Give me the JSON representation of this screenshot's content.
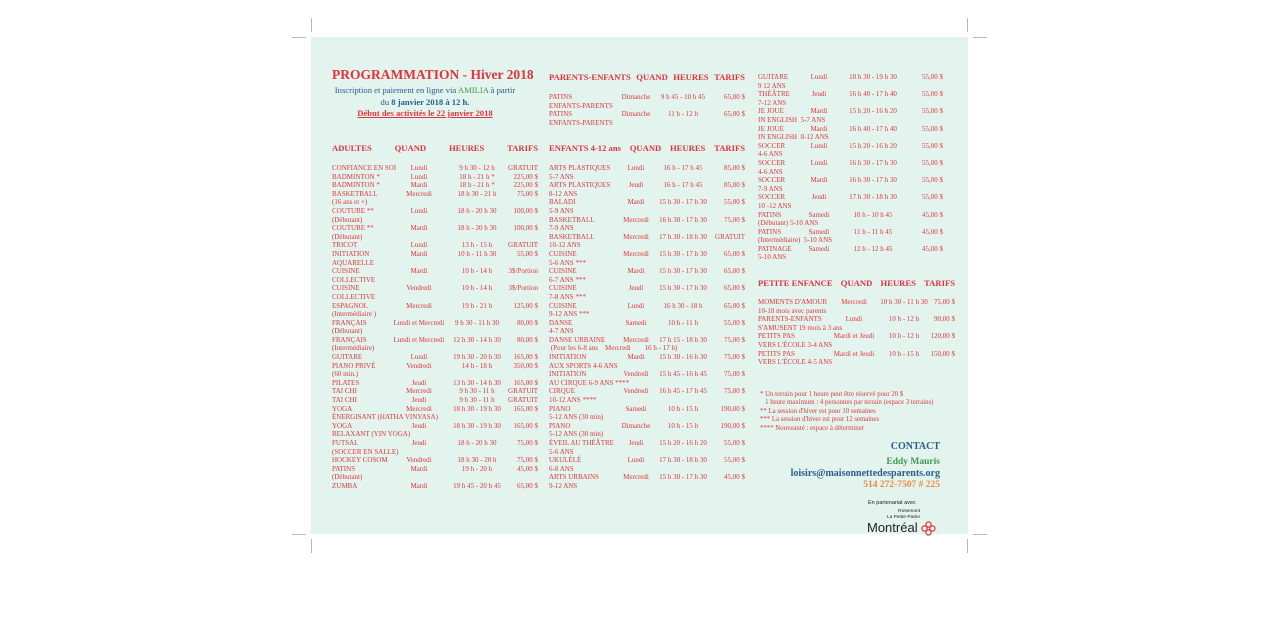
{
  "header": {
    "title": "PROGRAMMATION - Hiver 2018",
    "info_line1_a": "Inscription et paiement en ligne via ",
    "info_line1_b": "AMILIA",
    "info_line1_c": " à partir",
    "info_line2_a": "du ",
    "info_line2_b": "8 janvier 2018 à 12 h.",
    "start_line": "Début des activités le 22 janvier 2018"
  },
  "colors": {
    "red": "#e0343c",
    "blue": "#2a5d8a",
    "green": "#3d9b4e",
    "orange": "#ef8a3c",
    "background": "#e3f3ee"
  },
  "sections": {
    "adultes": {
      "headers": [
        "ADULTES",
        "QUAND",
        "HEURES",
        "TARIFS"
      ],
      "rows": [
        {
          "name": "CONFIANCE EN SOI",
          "sub": "",
          "day": "Lundi",
          "hours": "9 h 30 - 12 h",
          "price": "GRATUIT"
        },
        {
          "name": "BADMINTON *",
          "sub": "",
          "day": "Lundi",
          "hours": "18 h - 21 h *",
          "price": "225,00 $"
        },
        {
          "name": "BADMINTON *",
          "sub": "",
          "day": "Mardi",
          "hours": "18 h - 21 h *",
          "price": "225,00 $"
        },
        {
          "name": "BASKETBALL",
          "sub": "(16 ans et +)",
          "day": "Mercredi",
          "hours": "18 h 30 - 21 h",
          "price": "75,00 $"
        },
        {
          "name": "COUTURE **",
          "sub": "(Débutant)",
          "day": "Lundi",
          "hours": "18 h - 20 h 30",
          "price": "100,00 $"
        },
        {
          "name": "COUTURE **",
          "sub": "(Débutant)",
          "day": "Mardi",
          "hours": "18 h - 20 h 30",
          "price": "100,00 $"
        },
        {
          "name": "TRICOT",
          "sub": "",
          "day": "Lundi",
          "hours": "13 h - 15 h",
          "price": "GRATUIT"
        },
        {
          "name": "INITIATION",
          "sub": "AQUARELLE",
          "day": "Mardi",
          "hours": "10 h - 11 h 30",
          "price": "55,00 $"
        },
        {
          "name": "CUISINE",
          "sub": "COLLECTIVE",
          "day": "Mardi",
          "hours": "10 h - 14 h",
          "price": "3$/Portion"
        },
        {
          "name": "CUISINE",
          "sub": "COLLECTIVE",
          "day": "Vendredi",
          "hours": "10 h - 14 h",
          "price": "3$/Portion"
        },
        {
          "name": "ESPAGNOL",
          "sub": "(Intermédiaire )",
          "day": "Mercredi",
          "hours": "19 h - 21 h",
          "price": "125,00 $"
        },
        {
          "name": "FRANÇAIS",
          "sub": "(Débutant)",
          "day": "Lundi et Mercredi",
          "hours": "9 h 30 - 11 h 30",
          "price": "80,00 $"
        },
        {
          "name": "FRANÇAIS",
          "sub": "(Intermédiaire)",
          "day": "Lundi et Mercredi",
          "hours": "12 h 30 - 14 h 30",
          "price": "80,00 $"
        },
        {
          "name": "GUITARE",
          "sub": "",
          "day": "Lundi",
          "hours": "19 h 30 - 20 h 30",
          "price": "165,00 $"
        },
        {
          "name": "PIANO PRIVÉ",
          "sub": "(60 min.)",
          "day": "Vendredi",
          "hours": "14 h - 18 h",
          "price": "350,00 $"
        },
        {
          "name": "PILATES",
          "sub": "",
          "day": "Jeudi",
          "hours": "13 h 30 - 14 h 30",
          "price": "165,00 $"
        },
        {
          "name": "TAI CHI",
          "sub": "",
          "day": "Mercredi",
          "hours": "9 h 30 - 11 h",
          "price": "GRATUIT"
        },
        {
          "name": "TAI CHI",
          "sub": "",
          "day": "Jeudi",
          "hours": "9 h 30 - 11 h",
          "price": "GRATUIT"
        },
        {
          "name": "YOGA",
          "sub": "ÉNERGISANT (HATHA VINYASA)",
          "day": "Mercredi",
          "hours": "18 h 30 - 19 h 30",
          "price": "165,00 $"
        },
        {
          "name": "YOGA",
          "sub": "RELAXANT (YIN YOGA)",
          "day": "Jeudi",
          "hours": "18 h 30 - 19 h 30",
          "price": "165,00 $"
        },
        {
          "name": "FUTSAL",
          "sub": "(SOCCER EN SALLE)",
          "day": "Jeudi",
          "hours": "18 h - 20 h 30",
          "price": "75,00 $"
        },
        {
          "name": "HOCKEY COSOM",
          "sub": "",
          "day": "Vendredi",
          "hours": "18 h 30 - 20 h",
          "price": "75,00 $"
        },
        {
          "name": "PATINS",
          "sub": "(Débutant)",
          "day": "Mardi",
          "hours": "19 h  - 20 h",
          "price": "45,00 $"
        },
        {
          "name": "ZUMBA",
          "sub": "",
          "day": "Mardi",
          "hours": "19 h 45 - 20 h 45",
          "price": "65,00 $"
        }
      ]
    },
    "parents_enfants": {
      "headers": [
        "PARENTS-ENFANTS",
        "QUAND",
        "HEURES",
        "TARIFS"
      ],
      "rows": [
        {
          "name": "PATINS",
          "sub": "ENFANTS-PARENTS",
          "day": "Dimanche",
          "hours": "9 h 45 - 10 h 45",
          "price": "65,00 $"
        },
        {
          "name": "PATINS",
          "sub": "ENFANTS-PARENTS",
          "day": "Dimanche",
          "hours": "11 h - 12 h",
          "price": "65,00 $"
        }
      ]
    },
    "enfants": {
      "headers": [
        "ENFANTS 4-12 ans",
        "QUAND",
        "HEURES",
        "TARIFS"
      ],
      "rows": [
        {
          "name": "ARTS PLASTIQUES",
          "sub": "5-7 ANS",
          "day": "Lundi",
          "hours": "16 h - 17 h 45",
          "price": "85,00 $"
        },
        {
          "name": "ARTS PLASTIQUES",
          "sub": "8-12 ANS",
          "day": "Jeudi",
          "hours": "16 h - 17 h 45",
          "price": "85,00 $"
        },
        {
          "name": "BALADI",
          "sub": "5-9 ANS",
          "day": "Mardi",
          "hours": "15 h 30 - 17 h 30",
          "price": "55,00 $"
        },
        {
          "name": "BASKETBALL",
          "sub": "7-9 ANS",
          "day": "Mercredi",
          "hours": "16 h 30 - 17 h 30",
          "price": "75,00 $"
        },
        {
          "name": "BASKETBALL",
          "sub": "10-12 ANS",
          "day": "Mercredi",
          "hours": "17 h 30 - 18 h 30",
          "price": "GRATUIT"
        },
        {
          "name": "CUISINE",
          "sub": "5-6 ANS ***",
          "day": "Mercredi",
          "hours": "15 h 30 - 17 h 30",
          "price": "65,00 $"
        },
        {
          "name": "CUISINE",
          "sub": "6-7 ANS ***",
          "day": "Mardi",
          "hours": "15 h 30 - 17 h 30",
          "price": "65,00 $"
        },
        {
          "name": "CUISINE",
          "sub": "7-8 ANS ***",
          "day": "Jeudi",
          "hours": "15 h 30 - 17 h 30",
          "price": "65,00 $"
        },
        {
          "name": "CUISINE",
          "sub": "9-12 ANS ***",
          "day": "Lundi",
          "hours": "16 h 30 - 18 h",
          "price": "65,00 $"
        },
        {
          "name": "DANSE",
          "sub": "4-7 ANS",
          "day": "Samedi",
          "hours": "10 h - 11 h",
          "price": "55,00 $"
        },
        {
          "name": "DANSE URBAINE",
          "sub": " (Pour les 6-8 ans    Mercredi        16 h - 17 h)",
          "day": "Mercredi",
          "hours": "17 h 15 - 18 h 30",
          "price": "75,00 $"
        },
        {
          "name": "INITIATION",
          "sub": "AUX SPORTS 4-6 ANS",
          "day": "Mardi",
          "hours": "15 h 30 - 16 h 30",
          "price": "75,00 $"
        },
        {
          "name": "INITIATION",
          "sub": "AU CIRQUE 6-9 ANS ****",
          "day": "Vendredi",
          "hours": "15 h 45 - 16 h 45",
          "price": "75,00 $"
        },
        {
          "name": "CIRQUE",
          "sub": "10-12 ANS ****",
          "day": "Vendredi",
          "hours": "16 h 45 - 17 h 45",
          "price": "75,00 $"
        },
        {
          "name": "PIANO",
          "sub": "5-12 ANS (30 min)",
          "day": "Samedi",
          "hours": "10 h - 15 h",
          "price": "190,00 $"
        },
        {
          "name": "PIANO",
          "sub": "5-12 ANS (30 min)",
          "day": "Dimanche",
          "hours": "10 h - 15 h",
          "price": "190,00 $"
        },
        {
          "name": "ÉVEIL AU THÉÂTRE",
          "sub": "5-6 ANS",
          "day": "Jeudi",
          "hours": "15 h 20 - 16 h 20",
          "price": "55,00 $"
        },
        {
          "name": "UKULÉLÉ",
          "sub": "6-8 ANS",
          "day": "Lundi",
          "hours": "17 h 30 - 18 h 30",
          "price": "55,00 $"
        },
        {
          "name": "ARTS URBAINS",
          "sub": "9-12 ANS",
          "day": "Mercredi",
          "hours": "15 h 30 - 17 h 30",
          "price": "45,00 $"
        }
      ]
    },
    "enfants_suite": {
      "rows": [
        {
          "name": "GUITARE",
          "sub": "9 12 ANS",
          "day": "Lundi",
          "hours": "18 h 30 - 19 h 30",
          "price": "55,00  $"
        },
        {
          "name": "THÉÂTRE",
          "sub": "7-12 ANS",
          "day": "Jeudi",
          "hours": "16 h 40 - 17 h 40",
          "price": "55,00  $"
        },
        {
          "name": "JE JOUE",
          "sub": "IN ENGLISH  5-7 ANS",
          "day": "Mardi",
          "hours": "15 h 20 - 16 h 20",
          "price": "55,00  $"
        },
        {
          "name": "JE JOUE",
          "sub": "IN ENGLISH  8-12 ANS",
          "day": "Mardi",
          "hours": "16 h 40 - 17 h 40",
          "price": "55,00  $"
        },
        {
          "name": "SOCCER",
          "sub": "4-6 ANS",
          "day": "Lundi",
          "hours": "15 h 20 - 16 h 20",
          "price": "55,00  $"
        },
        {
          "name": "SOCCER",
          "sub": "4-6 ANS",
          "day": "Lundi",
          "hours": "16 h 30 - 17 h 30",
          "price": "55,00  $"
        },
        {
          "name": "SOCCER",
          "sub": "7-9 ANS",
          "day": "Mardi",
          "hours": "16 h 30 - 17 h 30",
          "price": "55,00  $"
        },
        {
          "name": "SOCCER",
          "sub": "10 -12 ANS",
          "day": "Jeudi",
          "hours": "17 h 30 - 18 h 30",
          "price": "55,00  $"
        },
        {
          "name": "PATINS",
          "sub": "(Débutant) 5-10 ANS",
          "day": "Samedi",
          "hours": "10 h - 10 h 45",
          "price": "45,00  $"
        },
        {
          "name": "PATINS",
          "sub": "(Intermédiaire)  5-10 ANS",
          "day": "Samedi",
          "hours": "11 h - 11 h 45",
          "price": "45,00  $"
        },
        {
          "name": "PATINAGE",
          "sub": "5-10 ANS",
          "day": "Samedi",
          "hours": "12 h - 12 h 45",
          "price": "45,00 $"
        }
      ]
    },
    "petite_enfance": {
      "headers": [
        "PETITE ENFANCE",
        "QUAND",
        "HEURES",
        "TARIFS"
      ],
      "rows": [
        {
          "name": "MOMENTS D'AMOUR",
          "sub": "10-18 mois avec parents",
          "day": "Mercredi",
          "hours": "10 h 30 - 11 h 30",
          "price": "75,00 $"
        },
        {
          "name": "PARENTS-ENFANTS",
          "sub": "S'AMUSENT 19 mois à 3 ans",
          "day": "Lundi",
          "hours": "10 h - 12 h",
          "price": "90,00 $"
        },
        {
          "name": "PETITS PAS",
          "sub": "VERS L'ÉCOLE 3-4 ANS",
          "day": "Mardi et Jeudi",
          "hours": "10 h - 12 h",
          "price": "120,00 $"
        },
        {
          "name": "PETITS PAS",
          "sub": "VERS L'ÉCOLE 4-5 ANS",
          "day": "Mardi et Jeudi",
          "hours": "10 h - 15 h",
          "price": "150,00 $"
        }
      ]
    }
  },
  "notes": [
    "* Un terrain pour 1 heure peut être réservé pour 20 $",
    "   1 heure maximum : 4 personnes par terrain (espace 3 terrains)",
    "** La session d'hiver est pour 10 semaines",
    "*** La session d'hiver est pour 12 semaines",
    "**** Nouveauté : espace à déterminer"
  ],
  "contact": {
    "heading": "CONTACT",
    "name": "Eddy Mauris",
    "email": "loisirs@maisonnettedesparents.org",
    "phone": "514 272-7507 # 225"
  },
  "partner": {
    "label": "En partenariat avec",
    "logo_line1": "Rosemont",
    "logo_line2": "La Petite-Patrie",
    "logo_name": "Montréal"
  }
}
